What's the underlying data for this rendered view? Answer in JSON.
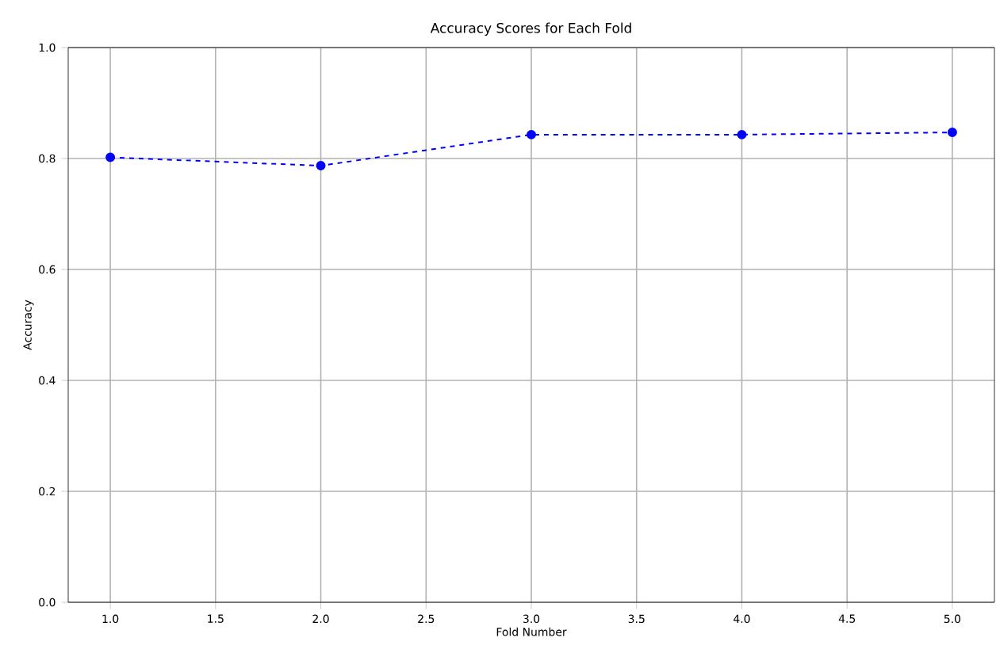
{
  "chart_data": {
    "type": "line",
    "title": "Accuracy Scores for Each Fold",
    "xlabel": "Fold Number",
    "ylabel": "Accuracy",
    "x": [
      1,
      2,
      3,
      4,
      5
    ],
    "series": [
      {
        "color": "#0000ff",
        "values": [
          0.802,
          0.787,
          0.843,
          0.843,
          0.847
        ]
      }
    ],
    "xlim": [
      0.8,
      5.2
    ],
    "xticks": [
      {
        "value": 1,
        "label": "1.0"
      },
      {
        "value": 1.5,
        "label": "1.5"
      },
      {
        "value": 2,
        "label": "2.0"
      },
      {
        "value": 2.5,
        "label": "2.5"
      },
      {
        "value": 3,
        "label": "3.0"
      },
      {
        "value": 3.5,
        "label": "3.5"
      },
      {
        "value": 4,
        "label": "4.0"
      },
      {
        "value": 4.5,
        "label": "4.5"
      },
      {
        "value": 5,
        "label": "5.0"
      }
    ],
    "ylim": [
      0,
      1
    ],
    "yticks": [
      {
        "value": 0,
        "label": "0.0"
      },
      {
        "value": 0.2,
        "label": "0.2"
      },
      {
        "value": 0.4,
        "label": "0.4"
      },
      {
        "value": 0.6,
        "label": "0.6"
      },
      {
        "value": 0.8,
        "label": "0.8"
      },
      {
        "value": 1,
        "label": "1.0"
      }
    ],
    "grid": true,
    "marker": "circle",
    "line_style": "dashed"
  }
}
